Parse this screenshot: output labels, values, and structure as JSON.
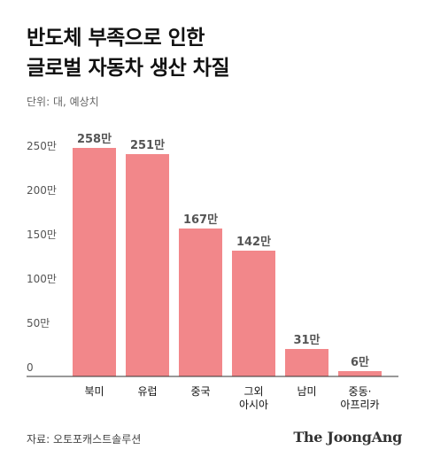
{
  "header": {
    "title_lines": [
      "반도체 부족으로 인한",
      "글로벌 자동차 생산 차질"
    ],
    "unit": "단위: 대, 예상치"
  },
  "footer": {
    "source": "자료: 오토포캐스트솔루션",
    "brand": "The JoongAng"
  },
  "chart_data": {
    "type": "bar",
    "categories": [
      [
        "북미"
      ],
      [
        "유럽"
      ],
      [
        "중국"
      ],
      [
        "그외",
        "아시아"
      ],
      [
        "남미"
      ],
      [
        "중동·",
        "아프리카"
      ]
    ],
    "values": [
      258,
      251,
      167,
      142,
      31,
      6
    ],
    "value_labels": [
      "258만",
      "251만",
      "167만",
      "142만",
      "31만",
      "6만"
    ],
    "y_ticks": [
      0,
      50,
      100,
      150,
      200,
      250
    ],
    "y_tick_labels": [
      "0",
      "50만",
      "100만",
      "150만",
      "200만",
      "250만"
    ],
    "ylim": [
      0,
      260
    ],
    "bar_color": "#f2878a",
    "grid": false
  }
}
